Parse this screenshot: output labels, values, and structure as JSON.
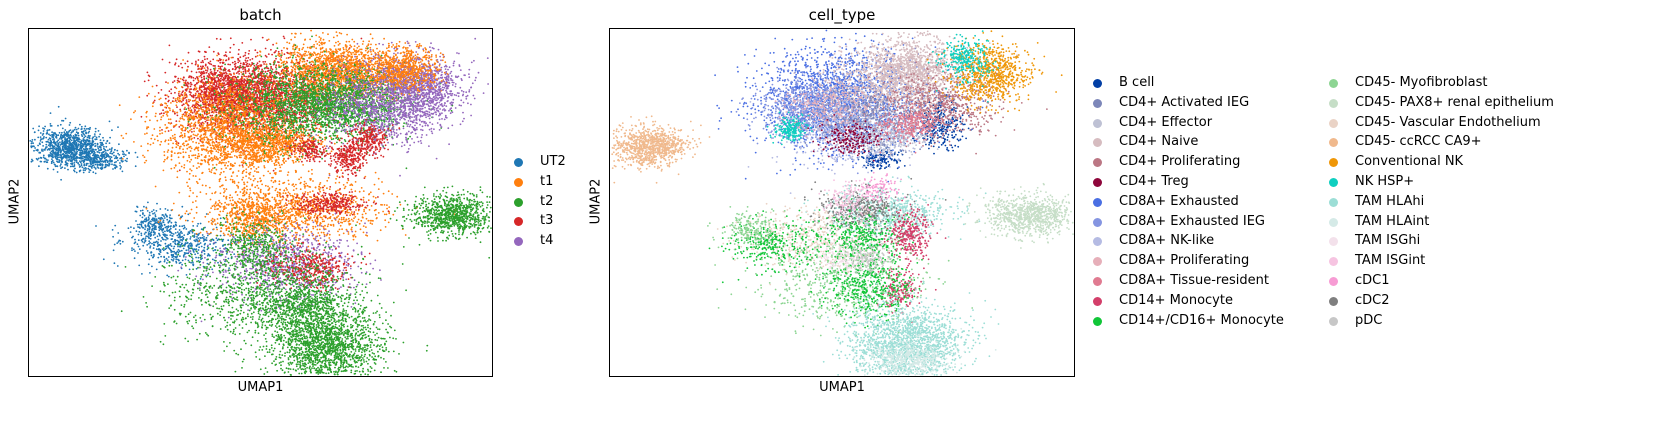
{
  "chart_data": [
    {
      "type": "scatter",
      "title": "batch",
      "xlabel": "UMAP1",
      "ylabel": "UMAP2",
      "grid": false,
      "legend_placement": "right",
      "series": [
        {
          "name": "UT2",
          "color": "#1f77b4"
        },
        {
          "name": "t1",
          "color": "#ff7f0e"
        },
        {
          "name": "t2",
          "color": "#2ca02c"
        },
        {
          "name": "t3",
          "color": "#d62728"
        },
        {
          "name": "t4",
          "color": "#9467bd"
        }
      ]
    },
    {
      "type": "scatter",
      "title": "cell_type",
      "xlabel": "UMAP1",
      "ylabel": "UMAP2",
      "grid": false,
      "legend_placement": "right",
      "series": [
        {
          "name": "B cell",
          "color": "#023fa5"
        },
        {
          "name": "CD4+ Activated IEG",
          "color": "#7d87b9"
        },
        {
          "name": "CD4+ Effector",
          "color": "#bec1d4"
        },
        {
          "name": "CD4+ Naive",
          "color": "#d6bcc0"
        },
        {
          "name": "CD4+ Proliferating",
          "color": "#bb7784"
        },
        {
          "name": "CD4+ Treg",
          "color": "#8e063b"
        },
        {
          "name": "CD8A+ Exhausted",
          "color": "#4a6fe3"
        },
        {
          "name": "CD8A+ Exhausted IEG",
          "color": "#8595e1"
        },
        {
          "name": "CD8A+ NK-like",
          "color": "#b5bbe3"
        },
        {
          "name": "CD8A+ Proliferating",
          "color": "#e6afb9"
        },
        {
          "name": "CD8A+ Tissue-resident",
          "color": "#e07b91"
        },
        {
          "name": "CD14+ Monocyte",
          "color": "#d33f6a"
        },
        {
          "name": "CD14+/CD16+ Monocyte",
          "color": "#11c638"
        },
        {
          "name": "CD45- Myofibroblast",
          "color": "#8dd593"
        },
        {
          "name": "CD45- PAX8+ renal epithelium",
          "color": "#c6dec7"
        },
        {
          "name": "CD45- Vascular Endothelium",
          "color": "#ead3c6"
        },
        {
          "name": "CD45- ccRCC CA9+",
          "color": "#f0b98d"
        },
        {
          "name": "Conventional NK",
          "color": "#ef9708"
        },
        {
          "name": "NK HSP+",
          "color": "#0fcfc0"
        },
        {
          "name": "TAM HLAhi",
          "color": "#9cded6"
        },
        {
          "name": "TAM HLAint",
          "color": "#d5eae7"
        },
        {
          "name": "TAM ISGhi",
          "color": "#f3e1eb"
        },
        {
          "name": "TAM ISGint",
          "color": "#f6c4e1"
        },
        {
          "name": "cDC1",
          "color": "#f79cd4"
        },
        {
          "name": "cDC2",
          "color": "#7f7f7f"
        },
        {
          "name": "pDC",
          "color": "#c7c7c7"
        }
      ]
    }
  ]
}
